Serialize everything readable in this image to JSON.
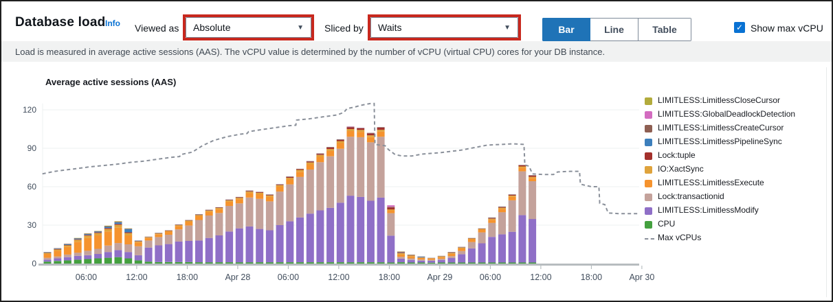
{
  "header": {
    "title": "Database load",
    "info_label": "Info",
    "viewed_as_label": "Viewed as",
    "viewed_as_value": "Absolute",
    "sliced_by_label": "Sliced by",
    "sliced_by_value": "Waits",
    "view_toggle": [
      "Bar",
      "Line",
      "Table"
    ],
    "view_toggle_selected": "Bar",
    "show_max_vcpu_label": "Show max vCPU",
    "show_max_vcpu_checked": true,
    "check_glyph": "✓",
    "caret_glyph": "▼",
    "accent_blue": "#1f73b7",
    "annotation_red": "#c8281e"
  },
  "description": "Load is measured in average active sessions (AAS). The vCPU value is determined by the number of vCPU (virtual CPU) cores for your DB instance.",
  "chart_data": {
    "type": "bar",
    "stacked": true,
    "title": "Average active sessions (AAS)",
    "ylabel": "",
    "xlabel": "",
    "ylim": [
      0,
      130
    ],
    "yticks": [
      0,
      30,
      60,
      90,
      120
    ],
    "grid": true,
    "legend_position": "right",
    "x_ticks": [
      {
        "h": 6,
        "label": "06:00"
      },
      {
        "h": 12,
        "label": "12:00"
      },
      {
        "h": 18,
        "label": "18:00"
      },
      {
        "h": 24,
        "label": "Apr 28"
      },
      {
        "h": 30,
        "label": "06:00"
      },
      {
        "h": 36,
        "label": "12:00"
      },
      {
        "h": 42,
        "label": "18:00"
      },
      {
        "h": 48,
        "label": "Apr 29"
      },
      {
        "h": 54,
        "label": "06:00"
      },
      {
        "h": 60,
        "label": "12:00"
      },
      {
        "h": 66,
        "label": "18:00"
      },
      {
        "h": 72,
        "label": "Apr 30"
      }
    ],
    "bar_start_hour": 1.4,
    "bar_step_hours": 1.2,
    "categories": [
      "Apr 27 01:24",
      "Apr 27 02:36",
      "Apr 27 03:48",
      "Apr 27 05:00",
      "Apr 27 06:12",
      "Apr 27 07:24",
      "Apr 27 08:36",
      "Apr 27 09:48",
      "Apr 27 11:00",
      "Apr 27 12:12",
      "Apr 27 13:24",
      "Apr 27 14:36",
      "Apr 27 15:48",
      "Apr 27 17:00",
      "Apr 27 18:12",
      "Apr 27 19:24",
      "Apr 27 20:36",
      "Apr 27 21:48",
      "Apr 27 23:00",
      "Apr 28 00:12",
      "Apr 28 01:24",
      "Apr 28 02:36",
      "Apr 28 03:48",
      "Apr 28 05:00",
      "Apr 28 06:12",
      "Apr 28 07:24",
      "Apr 28 08:36",
      "Apr 28 09:48",
      "Apr 28 11:00",
      "Apr 28 12:12",
      "Apr 28 13:24",
      "Apr 28 14:36",
      "Apr 28 15:48",
      "Apr 28 17:00",
      "Apr 28 18:12",
      "Apr 28 19:24",
      "Apr 28 20:36",
      "Apr 28 21:48",
      "Apr 28 23:00",
      "Apr 29 00:12",
      "Apr 29 01:24",
      "Apr 29 02:36",
      "Apr 29 03:48",
      "Apr 29 05:00",
      "Apr 29 06:12",
      "Apr 29 07:24",
      "Apr 29 08:36",
      "Apr 29 09:48",
      "Apr 29 11:00"
    ],
    "series": [
      {
        "name": "LIMITLESS:LimitlessCloseCursor",
        "color": "#b2ab3c",
        "values": [
          0,
          0,
          0,
          0.2,
          0.2,
          0.2,
          0.3,
          0.4,
          0.2,
          0,
          0,
          0,
          0,
          0,
          0,
          0,
          0,
          0,
          0,
          0,
          0,
          0,
          0,
          0,
          0,
          0,
          0,
          0,
          0,
          0,
          0,
          0,
          0,
          0,
          0,
          0.2,
          0.1,
          0,
          0,
          0,
          0,
          0,
          0,
          0,
          0,
          0,
          0,
          0,
          0
        ]
      },
      {
        "name": "LIMITLESS:GlobalDeadlockDetection",
        "color": "#d36cc0",
        "values": [
          0,
          0,
          0,
          0,
          0,
          0,
          0,
          0,
          0,
          0,
          0,
          0,
          0,
          0,
          0,
          0,
          0,
          0,
          0,
          0,
          0,
          0,
          0,
          0,
          0,
          0,
          0,
          0,
          0,
          0,
          0.2,
          0.1,
          0,
          0,
          1.2,
          0.1,
          0,
          0,
          0,
          0,
          0,
          0,
          0,
          0,
          0,
          0,
          0,
          0,
          0
        ]
      },
      {
        "name": "LIMITLESS:LimitlessCreateCursor",
        "color": "#8e5f52",
        "values": [
          0.2,
          0.3,
          0.4,
          0.3,
          0.3,
          0.3,
          0.5,
          0.5,
          0.4,
          0.1,
          0.1,
          0.2,
          0.2,
          0.2,
          0.2,
          0.2,
          0.2,
          0.2,
          0.2,
          0.2,
          0.2,
          0.2,
          0.2,
          0.2,
          0.3,
          0.2,
          0.3,
          0.3,
          0.3,
          0.3,
          0.2,
          0.2,
          0.3,
          0.3,
          0.3,
          0.6,
          0.3,
          0.2,
          0.1,
          0.2,
          0.4,
          0.2,
          0.1,
          0.1,
          0.5,
          0.3,
          0.3,
          0.3,
          0.3
        ]
      },
      {
        "name": "LIMITLESS:LimitlessPipelineSync",
        "color": "#3d7fbc",
        "values": [
          0.3,
          0.4,
          0.6,
          0.6,
          0.7,
          0.7,
          1,
          1.2,
          2.5,
          0.3,
          0.1,
          0.1,
          0.1,
          0.1,
          0.1,
          0.1,
          0.1,
          0.1,
          0.1,
          0.1,
          0.1,
          0.1,
          0.1,
          0.1,
          0.1,
          0.1,
          0.1,
          0.1,
          0.1,
          0.1,
          0.1,
          0.1,
          0.1,
          0.1,
          0.1,
          0.2,
          0.1,
          0.5,
          0.1,
          0.1,
          0.1,
          0.1,
          0.1,
          0.1,
          0.1,
          0.1,
          0.1,
          0.1,
          0.1
        ]
      },
      {
        "name": "Lock:tuple",
        "color": "#a3302c",
        "values": [
          0.2,
          0.3,
          0.3,
          0.4,
          0.5,
          0.5,
          0.7,
          0.7,
          0.6,
          0.3,
          0.2,
          0.2,
          0.2,
          0.2,
          0.2,
          0.3,
          0.3,
          0.3,
          0.4,
          0.4,
          0.5,
          0.5,
          0.5,
          0.5,
          0.7,
          0.6,
          0.7,
          0.8,
          1.2,
          1,
          1.5,
          1.3,
          1.5,
          1.7,
          1.6,
          0.3,
          0.2,
          0.1,
          0.1,
          0.1,
          0.2,
          0.2,
          0.2,
          0.2,
          0.4,
          0.5,
          0.6,
          0.8,
          0.9
        ]
      },
      {
        "name": "IO:XactSync",
        "color": "#dfa33c",
        "values": [
          0.8,
          1,
          1.2,
          1.5,
          1.8,
          1.8,
          2,
          2.2,
          1.8,
          0.8,
          0.6,
          0.6,
          0.6,
          0.7,
          0.8,
          0.9,
          0.9,
          0.9,
          1,
          1,
          1.1,
          1.1,
          1.1,
          1.2,
          1.3,
          1.4,
          1.5,
          1.5,
          1.5,
          1.6,
          1.6,
          1.5,
          1.4,
          1.4,
          0.8,
          1,
          0.8,
          0.4,
          0.3,
          0.6,
          0.7,
          0.7,
          0.6,
          0.6,
          0.8,
          0.9,
          0.9,
          1,
          0.9
        ]
      },
      {
        "name": "LIMITLESS:LimitlessExecute",
        "color": "#f5932e",
        "values": [
          3,
          4.5,
          6,
          8.5,
          10,
          10.5,
          11,
          12,
          7,
          3,
          2,
          2.2,
          2.4,
          2.6,
          3,
          3,
          3,
          3,
          3.3,
          3.3,
          3.6,
          3.6,
          3.6,
          3.8,
          3.8,
          4,
          4,
          4.2,
          4.2,
          4.4,
          4.4,
          4.2,
          4,
          4,
          2.2,
          1.8,
          1.5,
          1.2,
          1,
          1.2,
          1.8,
          2,
          2.2,
          2.2,
          2.4,
          2.6,
          2.8,
          2.8,
          2.5
        ]
      },
      {
        "name": "Lock:transactionid",
        "color": "#c4a29b",
        "values": [
          1.5,
          1.5,
          2,
          2.5,
          3.5,
          4,
          5,
          5.5,
          6,
          7,
          5.5,
          6.5,
          7.3,
          9.5,
          12,
          16,
          17.5,
          17.5,
          20,
          19.5,
          22.5,
          23.5,
          22.5,
          26.2,
          28.8,
          31.7,
          34.4,
          37.6,
          40.2,
          42.1,
          46,
          46.6,
          45.7,
          47.5,
          17.5,
          1.5,
          1.2,
          0.8,
          0.7,
          1,
          1.5,
          2.5,
          5,
          8.5,
          11,
          17.3,
          24.5,
          34.2,
          29.5
        ]
      },
      {
        "name": "LIMITLESS:LimitlessModify",
        "color": "#8f6fc7",
        "values": [
          1.5,
          2,
          2.5,
          3,
          3,
          3.5,
          4.5,
          5.5,
          5,
          4,
          11,
          13,
          14,
          16,
          16.5,
          17,
          19,
          21,
          24,
          26.5,
          28,
          26,
          25,
          29,
          32,
          35,
          38,
          40.5,
          42.5,
          46.5,
          52,
          51,
          48,
          50.5,
          21,
          2.8,
          2,
          1.5,
          1.5,
          2,
          3.5,
          6.5,
          11,
          15,
          20,
          22,
          24,
          37,
          34
        ]
      },
      {
        "name": "CPU",
        "color": "#44a03f",
        "values": [
          1.5,
          2,
          2.5,
          3,
          3.5,
          4,
          4.5,
          5,
          4,
          2.5,
          1.5,
          1.2,
          1.2,
          1.2,
          1.2,
          1,
          1,
          1,
          1,
          1,
          1,
          1,
          1,
          1,
          1,
          1,
          1,
          1,
          1,
          1,
          1,
          1,
          1,
          1,
          0.8,
          1,
          0.8,
          0.8,
          0.7,
          0.8,
          0.8,
          0.8,
          0.8,
          0.8,
          0.8,
          0.8,
          0.8,
          0.8,
          0.8
        ]
      }
    ],
    "max_vcpus_line": {
      "name": "Max vCPUs",
      "color": "#8a909a",
      "style": "dashed",
      "points_hours_value": [
        [
          0.8,
          70
        ],
        [
          1.5,
          71
        ],
        [
          2.3,
          72
        ],
        [
          3.5,
          73
        ],
        [
          4.7,
          74
        ],
        [
          6.4,
          75.5
        ],
        [
          8,
          76.5
        ],
        [
          9.6,
          77.5
        ],
        [
          11.3,
          79
        ],
        [
          12.9,
          80
        ],
        [
          14.5,
          81.5
        ],
        [
          16.2,
          83
        ],
        [
          17.1,
          83.5
        ],
        [
          17.2,
          85
        ],
        [
          18.6,
          87
        ],
        [
          19.8,
          92
        ],
        [
          21.1,
          96
        ],
        [
          22.7,
          99
        ],
        [
          24.3,
          101
        ],
        [
          25.1,
          101.5
        ],
        [
          25.3,
          103
        ],
        [
          26.8,
          104.5
        ],
        [
          28.4,
          106
        ],
        [
          30,
          107.5
        ],
        [
          30.9,
          108
        ],
        [
          31,
          112
        ],
        [
          32.5,
          113
        ],
        [
          34.1,
          114.5
        ],
        [
          35.8,
          116
        ],
        [
          36.6,
          118
        ],
        [
          37,
          121
        ],
        [
          37.8,
          122
        ],
        [
          38.6,
          123.5
        ],
        [
          39.8,
          125
        ],
        [
          40.2,
          125
        ],
        [
          40.3,
          93
        ],
        [
          41.5,
          92
        ],
        [
          41.9,
          89
        ],
        [
          42.7,
          85
        ],
        [
          43.5,
          84
        ],
        [
          44.7,
          84
        ],
        [
          46,
          85.5
        ],
        [
          48,
          86.5
        ],
        [
          49.2,
          87.5
        ],
        [
          50.5,
          88.5
        ],
        [
          51.7,
          90
        ],
        [
          52.9,
          91.5
        ],
        [
          53.7,
          92.5
        ],
        [
          55.4,
          93
        ],
        [
          56.6,
          93.5
        ],
        [
          58,
          93
        ],
        [
          58.1,
          77
        ],
        [
          58.6,
          76
        ],
        [
          59,
          70
        ],
        [
          60.3,
          69.5
        ],
        [
          61.5,
          69.5
        ],
        [
          62,
          71.5
        ],
        [
          63.5,
          72
        ],
        [
          64.6,
          72
        ],
        [
          64.7,
          62
        ],
        [
          65.3,
          61
        ],
        [
          66,
          60
        ],
        [
          66.9,
          60
        ],
        [
          67,
          47
        ],
        [
          67.6,
          46
        ],
        [
          68,
          39.5
        ],
        [
          69.2,
          39
        ],
        [
          71.5,
          39
        ]
      ]
    }
  }
}
